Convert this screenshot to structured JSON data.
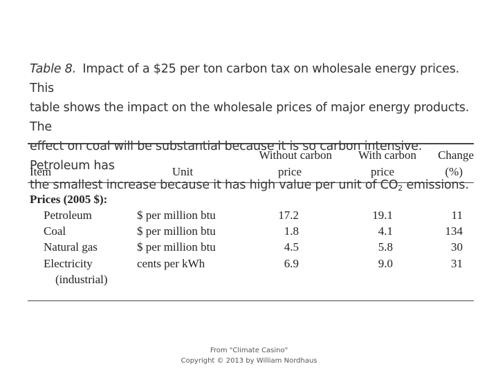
{
  "caption": {
    "label": "Table 8.",
    "line1": "Impact of a $25 per ton carbon tax on wholesale energy prices. This",
    "line2": "table shows the impact on the wholesale prices of major energy products. The",
    "line3": "effect on coal will be substantial because it is so carbon intensive. Petroleum has",
    "line4_pre": "the smallest increase because it has high value per unit of CO",
    "line4_sub": "2",
    "line4_post": " emissions."
  },
  "table": {
    "headers": {
      "item": "Item",
      "unit": "Unit",
      "without_line1": "Without carbon",
      "without_line2": "price",
      "with_line1": "With carbon",
      "with_line2": "price",
      "change_line1": "Change",
      "change_line2": "(%)"
    },
    "section_title": "Prices (2005 $):",
    "rows": [
      {
        "item": "Petroleum",
        "unit": "$ per million btu",
        "without": "17.2",
        "with": "19.1",
        "change": "11"
      },
      {
        "item": "Coal",
        "unit": "$ per million btu",
        "without": "1.8",
        "with": "4.1",
        "change": "134"
      },
      {
        "item": "Natural gas",
        "unit": "$ per million btu",
        "without": "4.5",
        "with": "5.8",
        "change": "30"
      },
      {
        "item": "Electricity",
        "item_line2": "(industrial)",
        "unit": "cents per kWh",
        "without": "6.9",
        "with": "9.0",
        "change": "31"
      }
    ]
  },
  "footer": {
    "line1": "From \"Climate Casino\"",
    "line2": "Copyright © 2013 by William Nordhaus"
  }
}
